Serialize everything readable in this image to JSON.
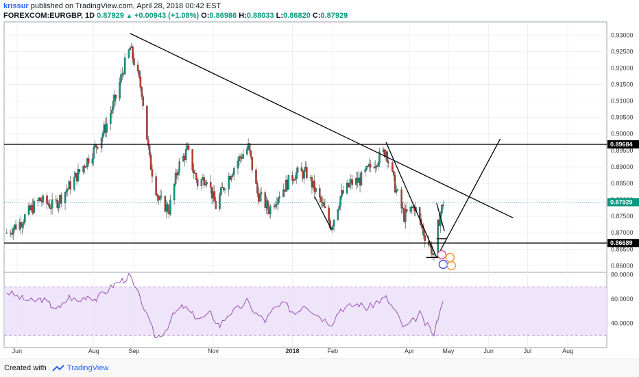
{
  "header": {
    "author": "krissur",
    "published": "published on TradingView.com, April 28, 2018 00:42 EST",
    "symbol": "FOREXCOM:EURGBP, 1D",
    "last": "0.87929",
    "change_arrow": "▲",
    "change": "+0.00943 (+1.08%)",
    "o_label": "O:",
    "o": "0.86986",
    "h_label": "H:",
    "h": "0.88033",
    "l_label": "L:",
    "l": "0.86820",
    "c_label": "C:",
    "c": "0.87929"
  },
  "footer": {
    "created": "Created with",
    "brand": "TradingView"
  },
  "colors": {
    "up": "#089981",
    "down": "#c0392b",
    "rsi": "#9b4fb6",
    "rsi_band": "#eadcf9",
    "grid": "#eef0f4",
    "line": "#000000"
  },
  "chart_data": [
    {
      "type": "candlestick",
      "symbol": "FOREXCOM:EURGBP",
      "interval": "1D",
      "ylim": [
        0.858,
        0.934
      ],
      "y_ticks": [
        "0.93000",
        "0.92500",
        "0.92000",
        "0.91500",
        "0.91000",
        "0.90500",
        "0.90000",
        "0.89500",
        "0.89000",
        "0.88500",
        "0.88000",
        "0.87500",
        "0.87000",
        "0.86500",
        "0.86000"
      ],
      "x_ticks": [
        "Jun",
        "Aug",
        "Sep",
        "Nov",
        "2018",
        "Feb",
        "Apr",
        "May",
        "Jun",
        "Jul",
        "Aug"
      ],
      "price_labels": [
        {
          "value": 0.89684,
          "text": "0.89684"
        },
        {
          "value": 0.87929,
          "text": "0.87929"
        },
        {
          "value": 0.86689,
          "text": "0.86689"
        }
      ],
      "horizontal_lines": [
        0.89684,
        0.86689
      ],
      "series_path": [
        [
          "2017-05-26",
          0.87
        ],
        [
          "2017-06-05",
          0.873
        ],
        [
          "2017-06-20",
          0.88
        ],
        [
          "2017-07-01",
          0.878
        ],
        [
          "2017-07-15",
          0.885
        ],
        [
          "2017-08-01",
          0.895
        ],
        [
          "2017-08-10",
          0.902
        ],
        [
          "2017-08-18",
          0.911
        ],
        [
          "2017-08-24",
          0.92
        ],
        [
          "2017-08-29",
          0.926
        ],
        [
          "2017-09-01",
          0.922
        ],
        [
          "2017-09-07",
          0.913
        ],
        [
          "2017-09-13",
          0.892
        ],
        [
          "2017-09-20",
          0.88
        ],
        [
          "2017-09-28",
          0.877
        ],
        [
          "2017-10-05",
          0.89
        ],
        [
          "2017-10-12",
          0.895
        ],
        [
          "2017-10-20",
          0.885
        ],
        [
          "2017-10-27",
          0.887
        ],
        [
          "2017-11-03",
          0.878
        ],
        [
          "2017-11-10",
          0.885
        ],
        [
          "2017-11-20",
          0.892
        ],
        [
          "2017-11-28",
          0.896
        ],
        [
          "2017-12-05",
          0.882
        ],
        [
          "2017-12-14",
          0.877
        ],
        [
          "2017-12-22",
          0.882
        ],
        [
          "2018-01-03",
          0.888
        ],
        [
          "2018-01-12",
          0.888
        ],
        [
          "2018-01-22",
          0.88
        ],
        [
          "2018-01-31",
          0.872
        ],
        [
          "2018-02-07",
          0.881
        ],
        [
          "2018-02-15",
          0.885
        ],
        [
          "2018-02-22",
          0.886
        ],
        [
          "2018-03-02",
          0.89
        ],
        [
          "2018-03-09",
          0.893
        ],
        [
          "2018-03-14",
          0.895
        ],
        [
          "2018-03-21",
          0.884
        ],
        [
          "2018-03-28",
          0.875
        ],
        [
          "2018-04-05",
          0.878
        ],
        [
          "2018-04-12",
          0.87
        ],
        [
          "2018-04-18",
          0.865
        ],
        [
          "2018-04-20",
          0.862
        ],
        [
          "2018-04-23",
          0.872
        ],
        [
          "2018-04-25",
          0.876
        ],
        [
          "2018-04-27",
          0.879
        ]
      ],
      "trendlines": [
        {
          "from": [
            "2017-08-29",
            0.9305
          ],
          "to": [
            "2018-06-20",
            0.8745
          ]
        },
        {
          "from": [
            "2018-03-14",
            0.8975
          ],
          "to": [
            "2018-04-22",
            0.8625
          ]
        },
        {
          "from": [
            "2018-04-22",
            0.8625
          ],
          "to": [
            "2018-06-10",
            0.8985
          ]
        },
        {
          "from": [
            "2018-01-18",
            0.881
          ],
          "to": [
            "2018-01-31",
            0.871
          ]
        },
        {
          "from": [
            "2018-04-22",
            0.879
          ],
          "to": [
            "2018-04-28",
            0.8705
          ]
        },
        {
          "from": [
            "2018-04-14",
            0.8625
          ],
          "to": [
            "2018-04-28",
            0.8625
          ]
        },
        {
          "from": [
            "2018-04-22",
            0.8682
          ],
          "to": [
            "2018-04-30",
            0.8682
          ]
        }
      ]
    },
    {
      "type": "line",
      "name": "RSI",
      "ylim": [
        20,
        82
      ],
      "y_ticks": [
        "80.0000",
        "60.0000",
        "40.0000"
      ],
      "bands": [
        30,
        70
      ],
      "series": [
        {
          "points": [
            [
              "2017-05-26",
              66
            ],
            [
              "2017-06-01",
              63
            ],
            [
              "2017-06-08",
              60
            ],
            [
              "2017-06-15",
              58
            ],
            [
              "2017-06-22",
              60
            ],
            [
              "2017-06-29",
              55
            ],
            [
              "2017-07-06",
              52
            ],
            [
              "2017-07-13",
              62
            ],
            [
              "2017-07-20",
              58
            ],
            [
              "2017-07-27",
              63
            ],
            [
              "2017-08-03",
              60
            ],
            [
              "2017-08-10",
              66
            ],
            [
              "2017-08-17",
              72
            ],
            [
              "2017-08-24",
              76
            ],
            [
              "2017-08-29",
              79
            ],
            [
              "2017-09-01",
              70
            ],
            [
              "2017-09-07",
              58
            ],
            [
              "2017-09-13",
              40
            ],
            [
              "2017-09-18",
              28
            ],
            [
              "2017-09-25",
              34
            ],
            [
              "2017-10-02",
              48
            ],
            [
              "2017-10-09",
              54
            ],
            [
              "2017-10-16",
              47
            ],
            [
              "2017-10-23",
              44
            ],
            [
              "2017-10-30",
              48
            ],
            [
              "2017-11-06",
              38
            ],
            [
              "2017-11-13",
              48
            ],
            [
              "2017-11-20",
              52
            ],
            [
              "2017-11-27",
              58
            ],
            [
              "2017-12-04",
              48
            ],
            [
              "2017-12-11",
              42
            ],
            [
              "2017-12-18",
              52
            ],
            [
              "2017-12-26",
              56
            ],
            [
              "2018-01-03",
              48
            ],
            [
              "2018-01-10",
              56
            ],
            [
              "2018-01-17",
              50
            ],
            [
              "2018-01-24",
              44
            ],
            [
              "2018-01-31",
              40
            ],
            [
              "2018-02-07",
              52
            ],
            [
              "2018-02-14",
              54
            ],
            [
              "2018-02-21",
              56
            ],
            [
              "2018-02-28",
              52
            ],
            [
              "2018-03-07",
              58
            ],
            [
              "2018-03-14",
              61
            ],
            [
              "2018-03-21",
              50
            ],
            [
              "2018-03-28",
              36
            ],
            [
              "2018-04-04",
              42
            ],
            [
              "2018-04-09",
              48
            ],
            [
              "2018-04-13",
              40
            ],
            [
              "2018-04-18",
              34
            ],
            [
              "2018-04-20",
              29
            ],
            [
              "2018-04-23",
              45
            ],
            [
              "2018-04-25",
              54
            ],
            [
              "2018-04-27",
              58
            ]
          ]
        }
      ]
    }
  ]
}
